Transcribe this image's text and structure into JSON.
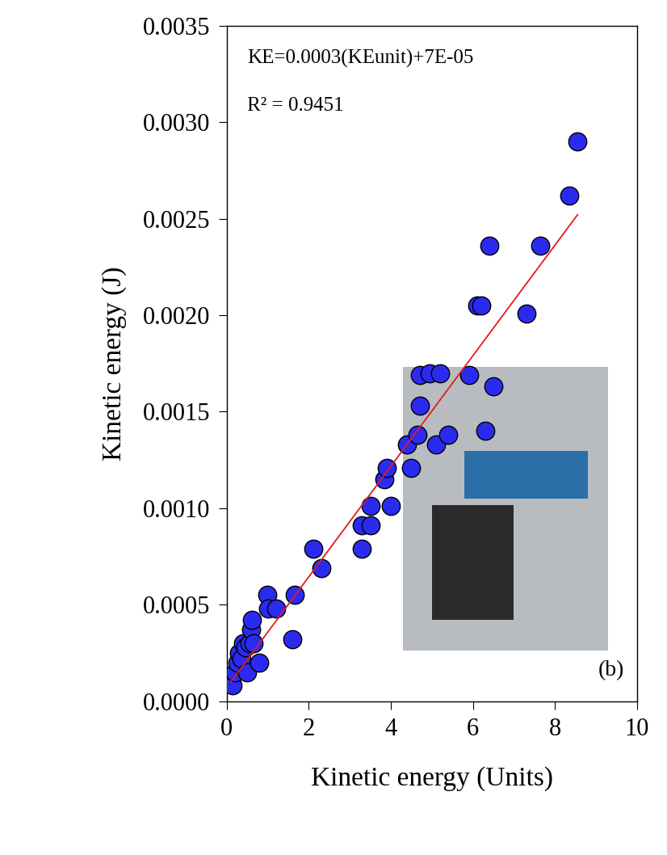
{
  "chart_data": {
    "type": "scatter",
    "xlabel": "Kinetic energy (Units)",
    "ylabel": "Kinetic energy (J)",
    "annotations": [
      "KE=0.0003(KEunit)+7E-05",
      "R² = 0.9451",
      "(b)"
    ],
    "xlim": [
      0,
      10
    ],
    "xticks": [
      0,
      2,
      4,
      6,
      8,
      10
    ],
    "ylim": [
      0,
      0.0035
    ],
    "yticks": [
      {
        "value": 0,
        "label": "0.0000"
      },
      {
        "value": 0.0005,
        "label": "0.0005"
      },
      {
        "value": 0.001,
        "label": "0.0010"
      },
      {
        "value": 0.0015,
        "label": "0.0015"
      },
      {
        "value": 0.002,
        "label": "0.0020"
      },
      {
        "value": 0.0025,
        "label": "0.0025"
      },
      {
        "value": 0.003,
        "label": "0.0030"
      },
      {
        "value": 0.0035,
        "label": "0.0035"
      }
    ],
    "grid": false,
    "series": [
      {
        "type": "scatter",
        "color": "#2b2bf0",
        "marker": "o",
        "x": [
          0.1,
          0.15,
          0.2,
          0.25,
          0.3,
          0.35,
          0.4,
          0.45,
          0.5,
          0.55,
          0.6,
          0.62,
          0.65,
          0.8,
          0.98,
          1.0,
          1.2,
          1.6,
          1.65,
          2.1,
          2.3,
          3.3,
          3.3,
          3.5,
          3.5,
          3.85,
          3.9,
          4.0,
          4.4,
          4.5,
          4.65,
          4.7,
          4.7,
          4.95,
          5.1,
          5.2,
          5.4,
          5.9,
          6.1,
          6.2,
          6.3,
          6.4,
          6.5,
          7.3,
          7.65,
          8.35,
          8.55
        ],
        "values": [
          0.0001,
          8e-05,
          0.00015,
          0.0002,
          0.00025,
          0.00022,
          0.0003,
          0.00028,
          0.00015,
          0.0003,
          0.00037,
          0.00042,
          0.0003,
          0.0002,
          0.00055,
          0.00048,
          0.00048,
          0.00032,
          0.00055,
          0.00079,
          0.00069,
          0.00079,
          0.00091,
          0.00091,
          0.00101,
          0.00115,
          0.00121,
          0.00101,
          0.00133,
          0.00121,
          0.00138,
          0.00153,
          0.00169,
          0.0017,
          0.00133,
          0.0017,
          0.00138,
          0.00169,
          0.00205,
          0.00205,
          0.0014,
          0.00236,
          0.00163,
          0.00201,
          0.00236,
          0.00262,
          0.0029
        ]
      },
      {
        "type": "line",
        "color": "#e31a1c",
        "line_style": "solid",
        "x": [
          0.1,
          8.55
        ],
        "values": [
          0.0001,
          0.00252
        ]
      }
    ]
  }
}
